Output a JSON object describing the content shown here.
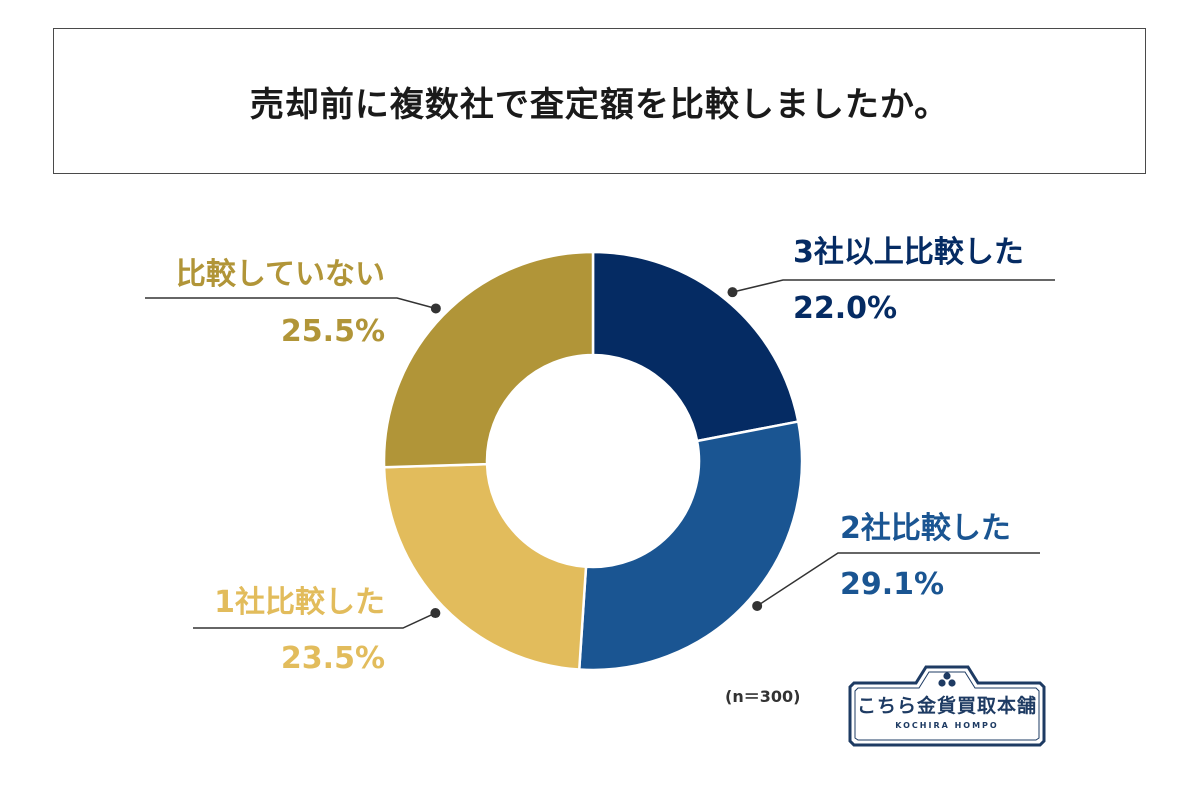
{
  "title": "売却前に複数社で査定額を比較しましたか。",
  "sample_note": "(n＝300)",
  "logo": {
    "name": "こちら金貨買取本舗",
    "sub": "KOCHIRA HOMPO"
  },
  "colors": {
    "navy": "#052b63",
    "blue": "#1a5592",
    "gold_light": "#e2bc5c",
    "gold_dark": "#b19538",
    "border": "#4a4a4a"
  },
  "chart_data": {
    "type": "pie",
    "donut": true,
    "categories": [
      "3社以上比較した",
      "2社比較した",
      "1社比較した",
      "比較していない"
    ],
    "values": [
      22.0,
      29.1,
      23.5,
      25.5
    ],
    "value_labels": [
      "22.0%",
      "29.1%",
      "23.5%",
      "25.5%"
    ],
    "colors": [
      "#052b63",
      "#1a5592",
      "#e2bc5c",
      "#b19538"
    ],
    "start_angle": "12 o'clock",
    "direction": "clockwise",
    "legend": "none"
  }
}
